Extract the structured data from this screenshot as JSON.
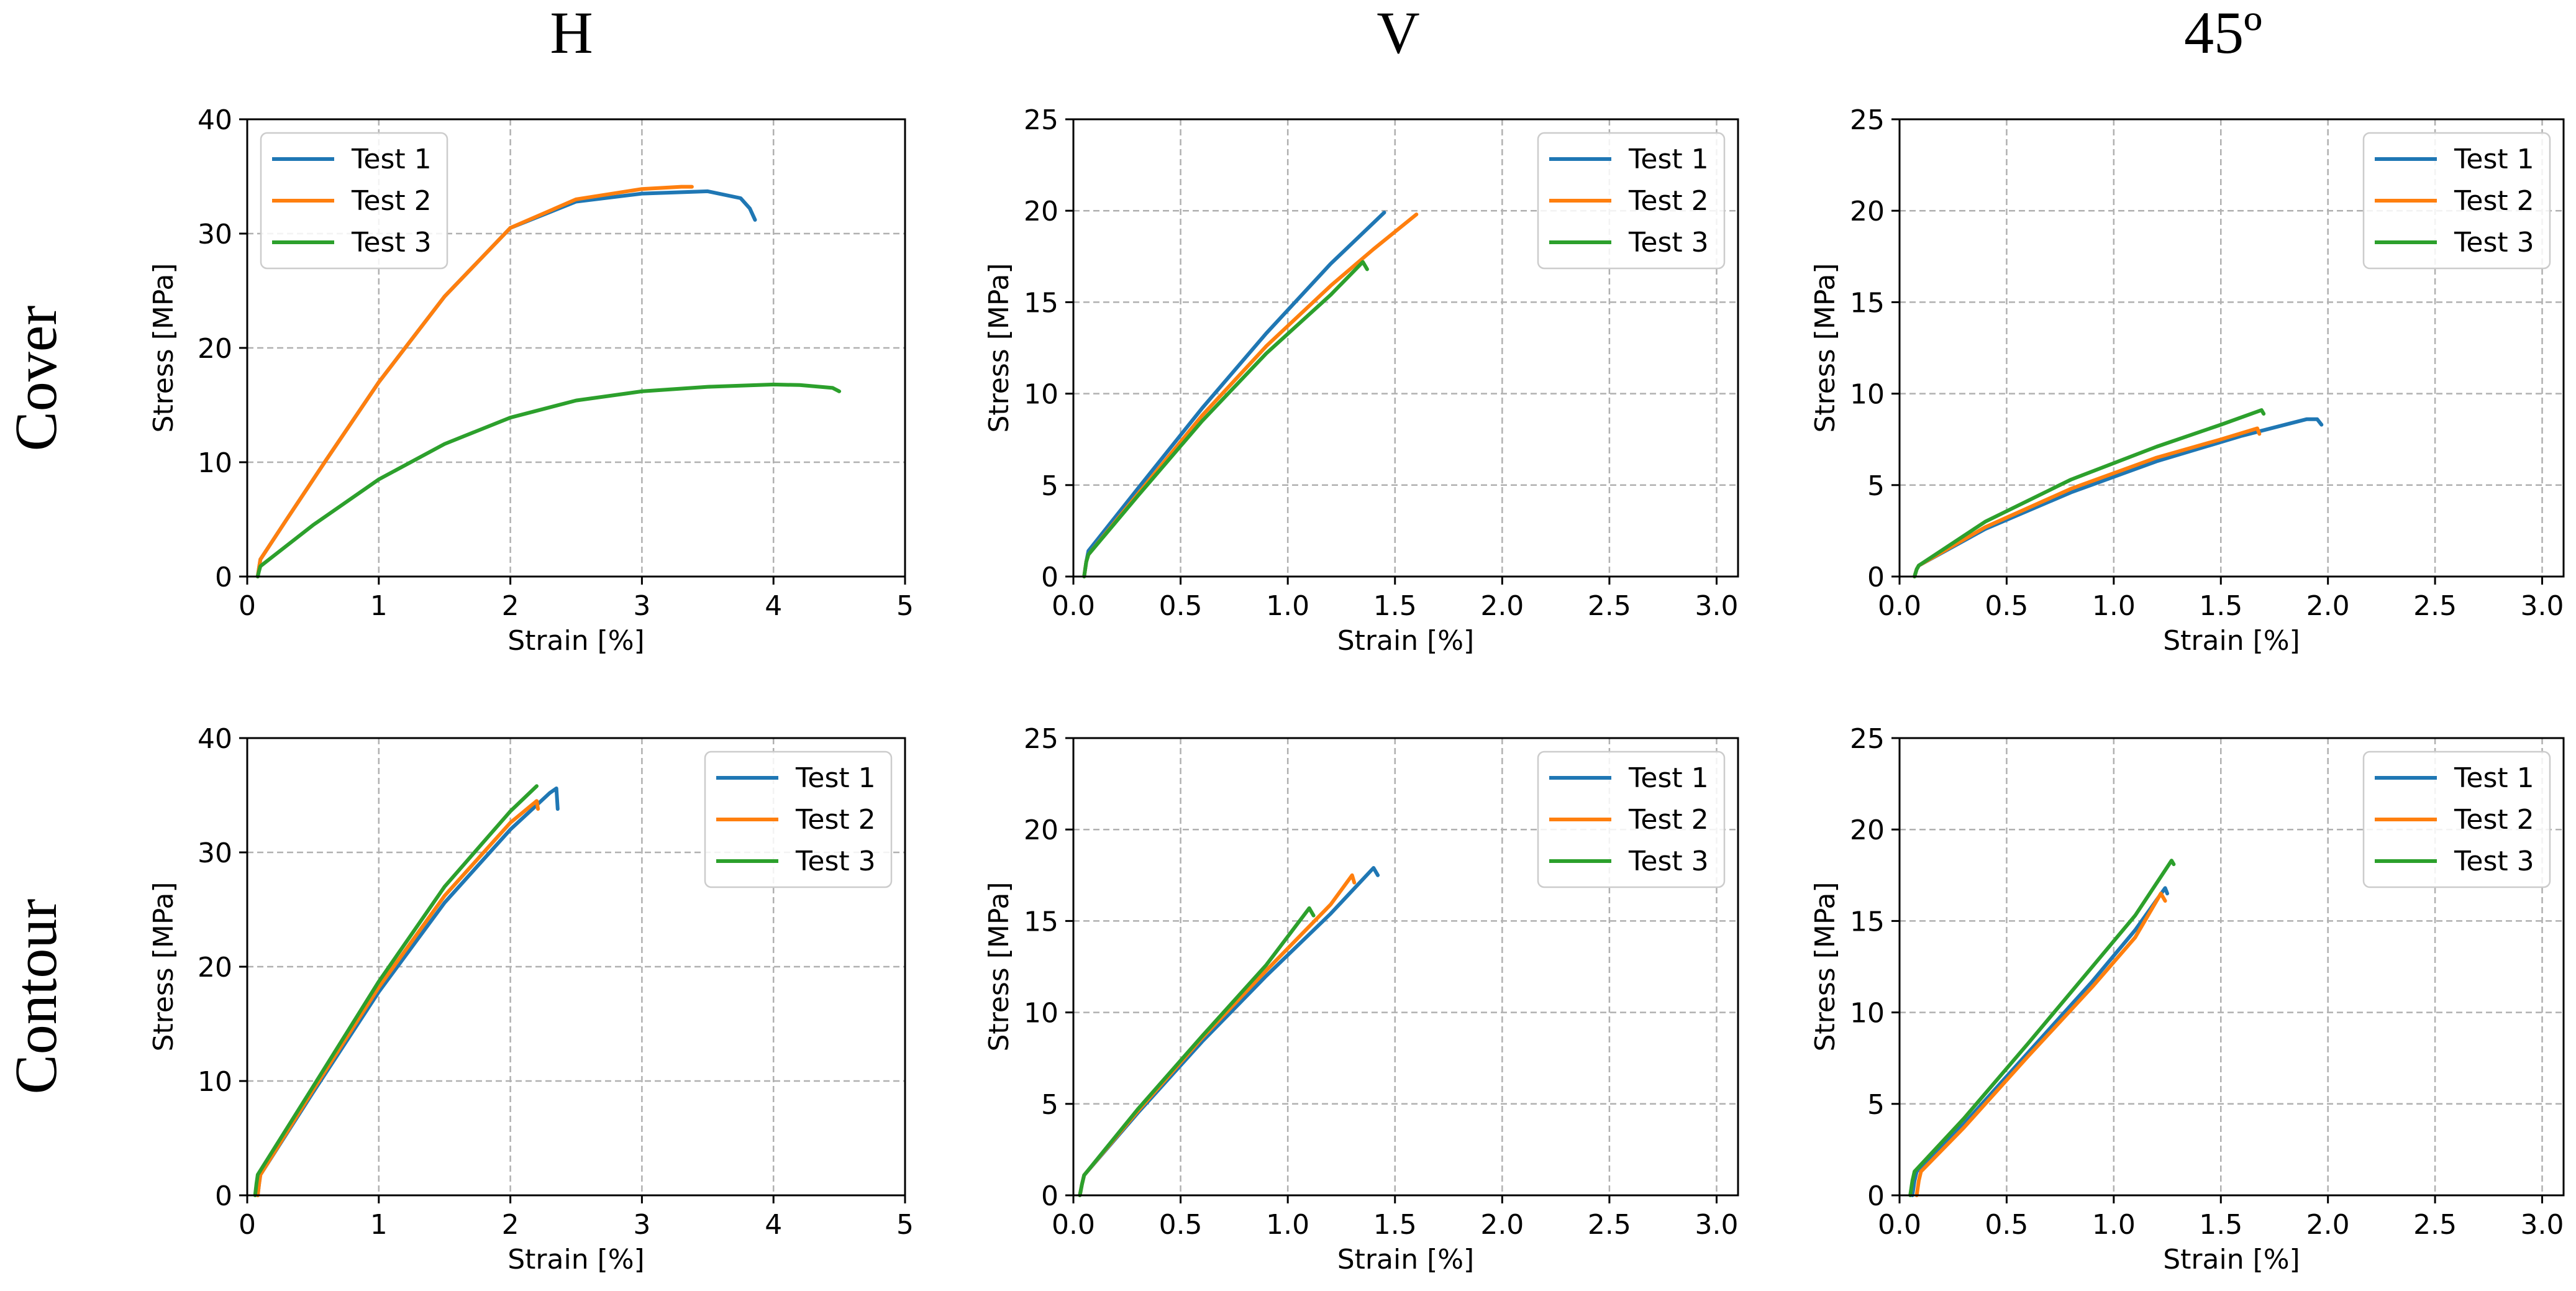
{
  "figure": {
    "col_titles": [
      "H",
      "V",
      "45º"
    ],
    "row_titles": [
      "Cover",
      "Contour"
    ],
    "colors": {
      "Test 1": "#1f77b4",
      "Test 2": "#ff7f0e",
      "Test 3": "#2ca02c"
    }
  },
  "chart_data": [
    {
      "type": "line",
      "row": "Cover",
      "col": "H",
      "xlabel": "Strain [%]",
      "ylabel": "Stress [MPa]",
      "xlim": [
        0,
        5
      ],
      "ylim": [
        0,
        40
      ],
      "xticks": [
        0,
        1,
        2,
        3,
        4,
        5
      ],
      "xtick_labels": [
        "0",
        "1",
        "2",
        "3",
        "4",
        "5"
      ],
      "yticks": [
        0,
        10,
        20,
        30,
        40
      ],
      "ytick_labels": [
        "0",
        "10",
        "20",
        "30",
        "40"
      ],
      "grid": true,
      "legend": "upper left",
      "series": [
        {
          "name": "Test 1",
          "x": [
            0.08,
            0.09,
            0.1,
            0.3,
            0.6,
            1.0,
            1.5,
            2.0,
            2.5,
            3.0,
            3.5,
            3.75,
            3.82,
            3.86
          ],
          "y": [
            0,
            0.8,
            1.5,
            5,
            10.2,
            17,
            24.5,
            30.5,
            32.8,
            33.5,
            33.7,
            33.1,
            32.2,
            31.2
          ]
        },
        {
          "name": "Test 2",
          "x": [
            0.08,
            0.09,
            0.1,
            0.3,
            0.6,
            1.0,
            1.5,
            2.0,
            2.5,
            3.0,
            3.3,
            3.38
          ],
          "y": [
            0,
            0.8,
            1.5,
            5,
            10.2,
            17,
            24.5,
            30.5,
            33,
            33.9,
            34.1,
            34.1
          ]
        },
        {
          "name": "Test 3",
          "x": [
            0.08,
            0.09,
            0.1,
            0.5,
            1.0,
            1.5,
            2.0,
            2.5,
            3.0,
            3.5,
            4.0,
            4.2,
            4.45,
            4.5
          ],
          "y": [
            0,
            0.5,
            0.9,
            4.5,
            8.5,
            11.6,
            13.9,
            15.4,
            16.2,
            16.6,
            16.8,
            16.75,
            16.5,
            16.2
          ]
        }
      ]
    },
    {
      "type": "line",
      "row": "Cover",
      "col": "V",
      "xlabel": "Strain [%]",
      "ylabel": "Stress [MPa]",
      "xlim": [
        0,
        3.1
      ],
      "ylim": [
        0,
        25
      ],
      "xticks": [
        0,
        0.5,
        1,
        1.5,
        2,
        2.5,
        3
      ],
      "xtick_labels": [
        "0.0",
        "0.5",
        "1.0",
        "1.5",
        "2.0",
        "2.5",
        "3.0"
      ],
      "yticks": [
        0,
        5,
        10,
        15,
        20,
        25
      ],
      "ytick_labels": [
        "0",
        "5",
        "10",
        "15",
        "20",
        "25"
      ],
      "grid": true,
      "legend": "upper right",
      "series": [
        {
          "name": "Test 1",
          "x": [
            0.05,
            0.06,
            0.07,
            0.3,
            0.6,
            0.9,
            1.2,
            1.45
          ],
          "y": [
            0,
            0.8,
            1.4,
            4.8,
            9.2,
            13.3,
            17.1,
            19.9
          ]
        },
        {
          "name": "Test 2",
          "x": [
            0.05,
            0.06,
            0.07,
            0.3,
            0.6,
            0.9,
            1.2,
            1.4,
            1.6
          ],
          "y": [
            0,
            0.8,
            1.2,
            4.5,
            8.8,
            12.6,
            15.9,
            17.9,
            19.8
          ]
        },
        {
          "name": "Test 3",
          "x": [
            0.05,
            0.06,
            0.07,
            0.3,
            0.6,
            0.9,
            1.2,
            1.35,
            1.37
          ],
          "y": [
            0,
            0.8,
            1.2,
            4.4,
            8.5,
            12.2,
            15.4,
            17.2,
            16.8
          ]
        }
      ]
    },
    {
      "type": "line",
      "row": "Cover",
      "col": "45º",
      "xlabel": "Strain [%]",
      "ylabel": "Stress [MPa]",
      "xlim": [
        0,
        3.1
      ],
      "ylim": [
        0,
        25
      ],
      "xticks": [
        0,
        0.5,
        1,
        1.5,
        2,
        2.5,
        3
      ],
      "xtick_labels": [
        "0.0",
        "0.5",
        "1.0",
        "1.5",
        "2.0",
        "2.5",
        "3.0"
      ],
      "yticks": [
        0,
        5,
        10,
        15,
        20,
        25
      ],
      "ytick_labels": [
        "0",
        "5",
        "10",
        "15",
        "20",
        "25"
      ],
      "grid": true,
      "legend": "upper right",
      "series": [
        {
          "name": "Test 1",
          "x": [
            0.07,
            0.08,
            0.09,
            0.4,
            0.8,
            1.2,
            1.6,
            1.9,
            1.95,
            1.97
          ],
          "y": [
            0,
            0.4,
            0.6,
            2.6,
            4.6,
            6.3,
            7.7,
            8.6,
            8.6,
            8.3
          ]
        },
        {
          "name": "Test 2",
          "x": [
            0.07,
            0.08,
            0.09,
            0.4,
            0.8,
            1.2,
            1.5,
            1.67,
            1.68
          ],
          "y": [
            0,
            0.4,
            0.6,
            2.7,
            4.8,
            6.5,
            7.5,
            8.1,
            7.8
          ]
        },
        {
          "name": "Test 3",
          "x": [
            0.07,
            0.08,
            0.09,
            0.4,
            0.8,
            1.2,
            1.5,
            1.69,
            1.7
          ],
          "y": [
            0,
            0.4,
            0.6,
            3.0,
            5.3,
            7.1,
            8.3,
            9.1,
            8.9
          ]
        }
      ]
    },
    {
      "type": "line",
      "row": "Contour",
      "col": "H",
      "xlabel": "Strain [%]",
      "ylabel": "Stress [MPa]",
      "xlim": [
        0,
        5
      ],
      "ylim": [
        0,
        40
      ],
      "xticks": [
        0,
        1,
        2,
        3,
        4,
        5
      ],
      "xtick_labels": [
        "0",
        "1",
        "2",
        "3",
        "4",
        "5"
      ],
      "yticks": [
        0,
        10,
        20,
        30,
        40
      ],
      "ytick_labels": [
        "0",
        "10",
        "20",
        "30",
        "40"
      ],
      "grid": true,
      "legend": "upper right",
      "series": [
        {
          "name": "Test 1",
          "x": [
            0.08,
            0.09,
            0.1,
            0.5,
            1.0,
            1.5,
            2.0,
            2.3,
            2.35,
            2.36
          ],
          "y": [
            0,
            1,
            1.8,
            9,
            17.8,
            25.6,
            32,
            35.2,
            35.6,
            33.8
          ]
        },
        {
          "name": "Test 2",
          "x": [
            0.08,
            0.09,
            0.1,
            0.5,
            1.0,
            1.5,
            2.0,
            2.2,
            2.21
          ],
          "y": [
            0,
            1,
            1.8,
            9.2,
            18.2,
            26.2,
            32.6,
            34.5,
            33.8
          ]
        },
        {
          "name": "Test 3",
          "x": [
            0.06,
            0.07,
            0.08,
            0.5,
            1.0,
            1.5,
            2.0,
            2.2
          ],
          "y": [
            0,
            1,
            1.8,
            9.5,
            18.7,
            27,
            33.6,
            35.8
          ]
        }
      ]
    },
    {
      "type": "line",
      "row": "Contour",
      "col": "V",
      "xlabel": "Strain [%]",
      "ylabel": "Stress [MPa]",
      "xlim": [
        0,
        3.1
      ],
      "ylim": [
        0,
        25
      ],
      "xticks": [
        0,
        0.5,
        1,
        1.5,
        2,
        2.5,
        3
      ],
      "xtick_labels": [
        "0.0",
        "0.5",
        "1.0",
        "1.5",
        "2.0",
        "2.5",
        "3.0"
      ],
      "yticks": [
        0,
        5,
        10,
        15,
        20,
        25
      ],
      "ytick_labels": [
        "0",
        "5",
        "10",
        "15",
        "20",
        "25"
      ],
      "grid": true,
      "legend": "upper right",
      "series": [
        {
          "name": "Test 1",
          "x": [
            0.03,
            0.04,
            0.05,
            0.3,
            0.6,
            0.9,
            1.2,
            1.4,
            1.42
          ],
          "y": [
            0,
            0.6,
            1.1,
            4.5,
            8.4,
            12,
            15.4,
            17.9,
            17.5
          ]
        },
        {
          "name": "Test 2",
          "x": [
            0.03,
            0.04,
            0.05,
            0.3,
            0.6,
            0.9,
            1.2,
            1.3,
            1.31
          ],
          "y": [
            0,
            0.6,
            1.1,
            4.6,
            8.6,
            12.3,
            15.9,
            17.5,
            17.1
          ]
        },
        {
          "name": "Test 3",
          "x": [
            0.03,
            0.04,
            0.05,
            0.3,
            0.6,
            0.9,
            1.1,
            1.12
          ],
          "y": [
            0,
            0.6,
            1.1,
            4.7,
            8.7,
            12.6,
            15.7,
            15.3
          ]
        }
      ]
    },
    {
      "type": "line",
      "row": "Contour",
      "col": "45º",
      "xlabel": "Strain [%]",
      "ylabel": "Stress [MPa]",
      "xlim": [
        0,
        3.1
      ],
      "ylim": [
        0,
        25
      ],
      "xticks": [
        0,
        0.5,
        1,
        1.5,
        2,
        2.5,
        3
      ],
      "xtick_labels": [
        "0.0",
        "0.5",
        "1.0",
        "1.5",
        "2.0",
        "2.5",
        "3.0"
      ],
      "yticks": [
        0,
        5,
        10,
        15,
        20,
        25
      ],
      "ytick_labels": [
        "0",
        "5",
        "10",
        "15",
        "20",
        "25"
      ],
      "grid": true,
      "legend": "upper right",
      "series": [
        {
          "name": "Test 1",
          "x": [
            0.06,
            0.07,
            0.08,
            0.3,
            0.6,
            0.9,
            1.1,
            1.24,
            1.25
          ],
          "y": [
            0,
            0.8,
            1.3,
            3.9,
            7.8,
            11.7,
            14.5,
            16.8,
            16.5
          ]
        },
        {
          "name": "Test 2",
          "x": [
            0.08,
            0.09,
            0.1,
            0.3,
            0.6,
            0.9,
            1.1,
            1.22,
            1.24
          ],
          "y": [
            0,
            0.8,
            1.3,
            3.7,
            7.6,
            11.4,
            14.1,
            16.5,
            16.1
          ]
        },
        {
          "name": "Test 3",
          "x": [
            0.05,
            0.06,
            0.07,
            0.3,
            0.6,
            0.9,
            1.1,
            1.27,
            1.28
          ],
          "y": [
            0,
            0.8,
            1.3,
            4.2,
            8.3,
            12.5,
            15.3,
            18.3,
            18.1
          ]
        }
      ]
    }
  ]
}
